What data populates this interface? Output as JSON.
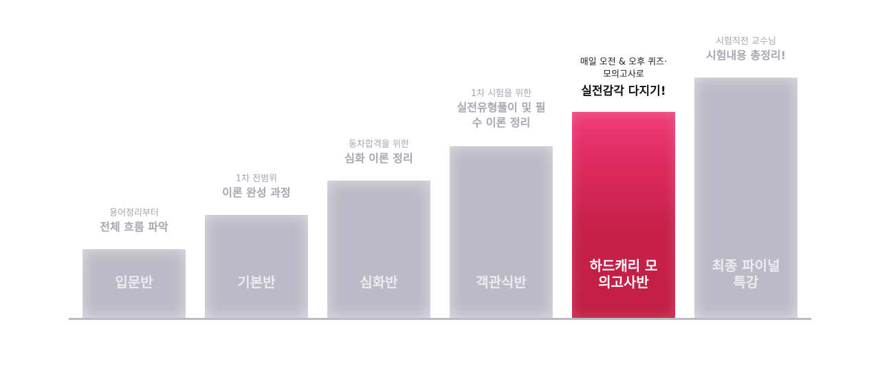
{
  "accent_color": "#c72049",
  "bar_color": "#bcbac6",
  "steps": [
    {
      "label": "입문반",
      "sub": "용어정리부터",
      "main": "전체 흐름 파악",
      "active": false
    },
    {
      "label": "기본반",
      "sub": "1차 전범위",
      "main": "이론 완성 과정",
      "active": false
    },
    {
      "label": "심화반",
      "sub": "동차합격을 위한",
      "main": "심화 이론 정리",
      "active": false
    },
    {
      "label": "객관식반",
      "sub": "1차 시험을 위한",
      "main": "실전유형풀이 및 필수 이론 정리",
      "active": false
    },
    {
      "label": "하드캐리 모의고사반",
      "sub": "매일 오전 & 오후 퀴즈·모의고사로",
      "main": "실전감각 다지기!",
      "active": true
    },
    {
      "label": "최종 파이널 특강",
      "sub": "시험직전 교수님",
      "main": "시험내용 총정리!",
      "active": false
    }
  ]
}
